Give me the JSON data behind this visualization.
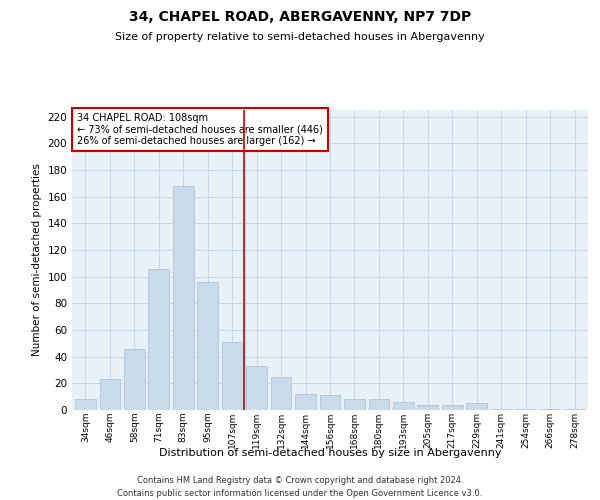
{
  "title": "34, CHAPEL ROAD, ABERGAVENNY, NP7 7DP",
  "subtitle": "Size of property relative to semi-detached houses in Abergavenny",
  "xlabel": "Distribution of semi-detached houses by size in Abergavenny",
  "ylabel": "Number of semi-detached properties",
  "bar_color": "#c9daea",
  "bar_edge_color": "#a8c0d4",
  "categories": [
    "34sqm",
    "46sqm",
    "58sqm",
    "71sqm",
    "83sqm",
    "95sqm",
    "107sqm",
    "119sqm",
    "132sqm",
    "144sqm",
    "156sqm",
    "168sqm",
    "180sqm",
    "193sqm",
    "205sqm",
    "217sqm",
    "229sqm",
    "241sqm",
    "254sqm",
    "266sqm",
    "278sqm"
  ],
  "values": [
    8,
    23,
    46,
    106,
    168,
    96,
    51,
    33,
    25,
    12,
    11,
    8,
    8,
    6,
    4,
    4,
    5,
    1,
    1,
    1,
    1
  ],
  "property_label": "34 CHAPEL ROAD: 108sqm",
  "pct_smaller": 73,
  "pct_smaller_n": 446,
  "pct_larger": 26,
  "pct_larger_n": 162,
  "vline_x": 7.0,
  "ylim": [
    0,
    225
  ],
  "yticks": [
    0,
    20,
    40,
    60,
    80,
    100,
    120,
    140,
    160,
    180,
    200,
    220
  ],
  "grid_color": "#c8d8e8",
  "bg_color": "#e8f0f8",
  "footer1": "Contains HM Land Registry data © Crown copyright and database right 2024.",
  "footer2": "Contains public sector information licensed under the Open Government Licence v3.0.",
  "red_line_color": "#cc0000",
  "annotation_box_color": "#cc0000"
}
